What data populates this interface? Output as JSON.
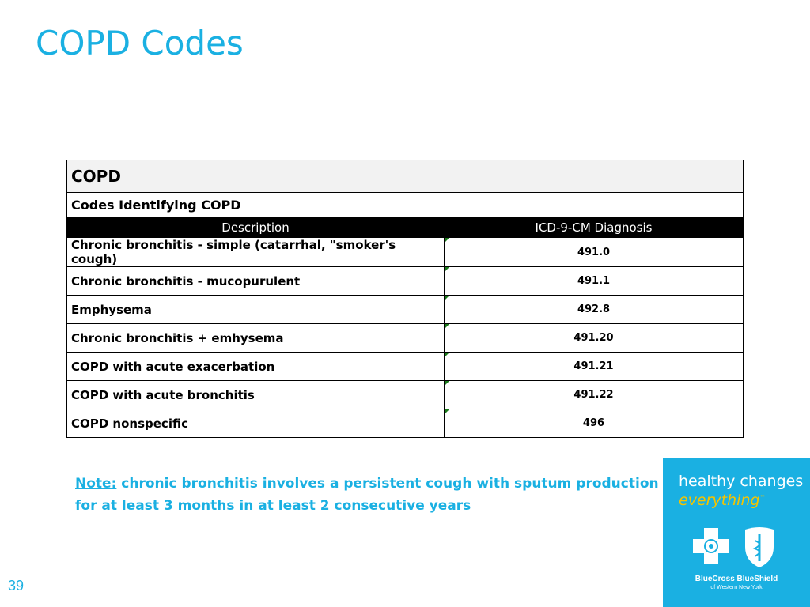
{
  "slide": {
    "title": "COPD Codes",
    "page_number": "39"
  },
  "table": {
    "header": "COPD",
    "subheader": "Codes Identifying COPD",
    "columns": [
      "Description",
      "ICD-9-CM Diagnosis"
    ],
    "rows": [
      {
        "description": "Chronic bronchitis - simple (catarrhal, \"smoker's cough)",
        "code": "491.0"
      },
      {
        "description": "Chronic bronchitis - mucopurulent",
        "code": "491.1"
      },
      {
        "description": "Emphysema",
        "code": "492.8"
      },
      {
        "description": "Chronic bronchitis + emhysema",
        "code": "491.20"
      },
      {
        "description": "COPD with acute exacerbation",
        "code": "491.21"
      },
      {
        "description": "COPD with acute bronchitis",
        "code": "491.22"
      },
      {
        "description": "COPD nonspecific",
        "code": "496"
      }
    ]
  },
  "note": {
    "label": "Note:",
    "text": " chronic bronchitis involves a persistent cough with sputum production for at least 3 months in at least 2 consecutive years"
  },
  "brand": {
    "tagline_1": "healthy changes",
    "tagline_2": "everything",
    "trademark": "™",
    "name": "BlueCross BlueShield",
    "region": "of Western New York",
    "icons": [
      "blue-cross-logo-icon",
      "blue-shield-logo-icon"
    ],
    "colors": {
      "accent": "#1ab0e2",
      "tagline_highlight": "#f5c400"
    }
  }
}
